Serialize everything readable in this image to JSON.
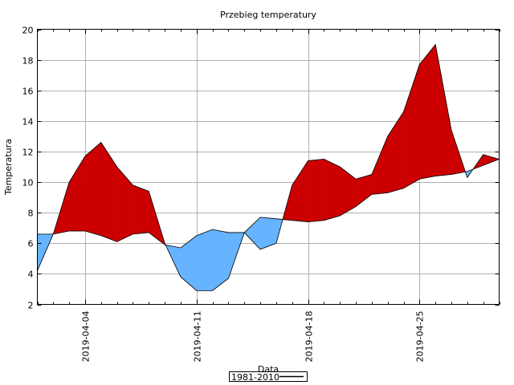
{
  "chart_data": {
    "type": "area",
    "title": "Przebieg temperatury",
    "xlabel": "Data",
    "ylabel": "Temperatura",
    "x_start": "2019-04-01",
    "x_end": "2019-04-30",
    "x_ticks": [
      "2019-04-04",
      "2019-04-11",
      "2019-04-18",
      "2019-04-25"
    ],
    "ylim": [
      2,
      20
    ],
    "y_ticks": [
      2,
      4,
      6,
      8,
      10,
      12,
      14,
      16,
      18,
      20
    ],
    "grid": true,
    "legend_placement": "bottom-center",
    "colors": {
      "above": "#cc0000",
      "below": "#66b3ff",
      "line": "#000000"
    },
    "x": [
      "2019-04-01",
      "2019-04-02",
      "2019-04-03",
      "2019-04-04",
      "2019-04-05",
      "2019-04-06",
      "2019-04-07",
      "2019-04-08",
      "2019-04-09",
      "2019-04-10",
      "2019-04-11",
      "2019-04-12",
      "2019-04-13",
      "2019-04-14",
      "2019-04-15",
      "2019-04-16",
      "2019-04-17",
      "2019-04-18",
      "2019-04-19",
      "2019-04-20",
      "2019-04-21",
      "2019-04-22",
      "2019-04-23",
      "2019-04-24",
      "2019-04-25",
      "2019-04-26",
      "2019-04-27",
      "2019-04-28",
      "2019-04-29",
      "2019-04-30"
    ],
    "series": [
      {
        "values": [
          4.2,
          6.6,
          10.0,
          11.7,
          12.6,
          11.0,
          9.8,
          9.4,
          6.0,
          3.8,
          2.9,
          2.9,
          3.7,
          6.7,
          5.6,
          6.0,
          9.8,
          11.4,
          11.5,
          11.0,
          10.2,
          10.5,
          13.0,
          14.6,
          17.7,
          19.0,
          13.4,
          10.3,
          11.8,
          11.5
        ]
      },
      {
        "name": "1981-2010",
        "values": [
          6.6,
          6.6,
          6.8,
          6.8,
          6.5,
          6.1,
          6.6,
          6.7,
          5.9,
          5.7,
          6.5,
          6.9,
          6.7,
          6.7,
          7.7,
          7.6,
          7.5,
          7.4,
          7.5,
          7.8,
          8.4,
          9.2,
          9.3,
          9.6,
          10.2,
          10.4,
          10.5,
          10.7,
          11.1,
          11.5
        ]
      }
    ]
  }
}
